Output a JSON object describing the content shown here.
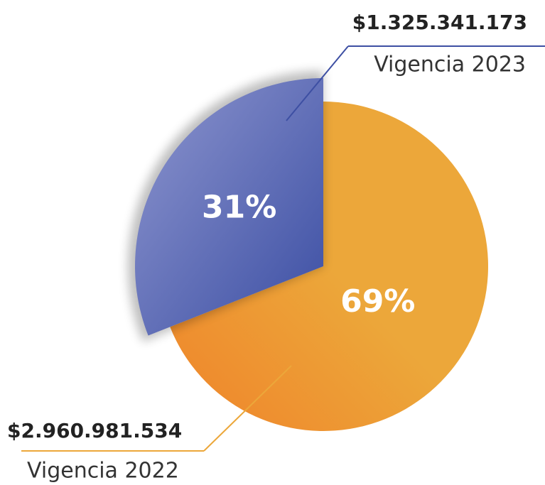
{
  "chart_data": {
    "type": "pie",
    "categories": [
      "Vigencia 2022",
      "Vigencia 2023"
    ],
    "values": [
      69,
      31
    ],
    "value_labels": [
      "69%",
      "31%"
    ],
    "amounts": [
      "$2.960.981.534",
      "$1.325.341.173"
    ],
    "colors": [
      "#eca73a",
      "#6f7cc0"
    ]
  }
}
